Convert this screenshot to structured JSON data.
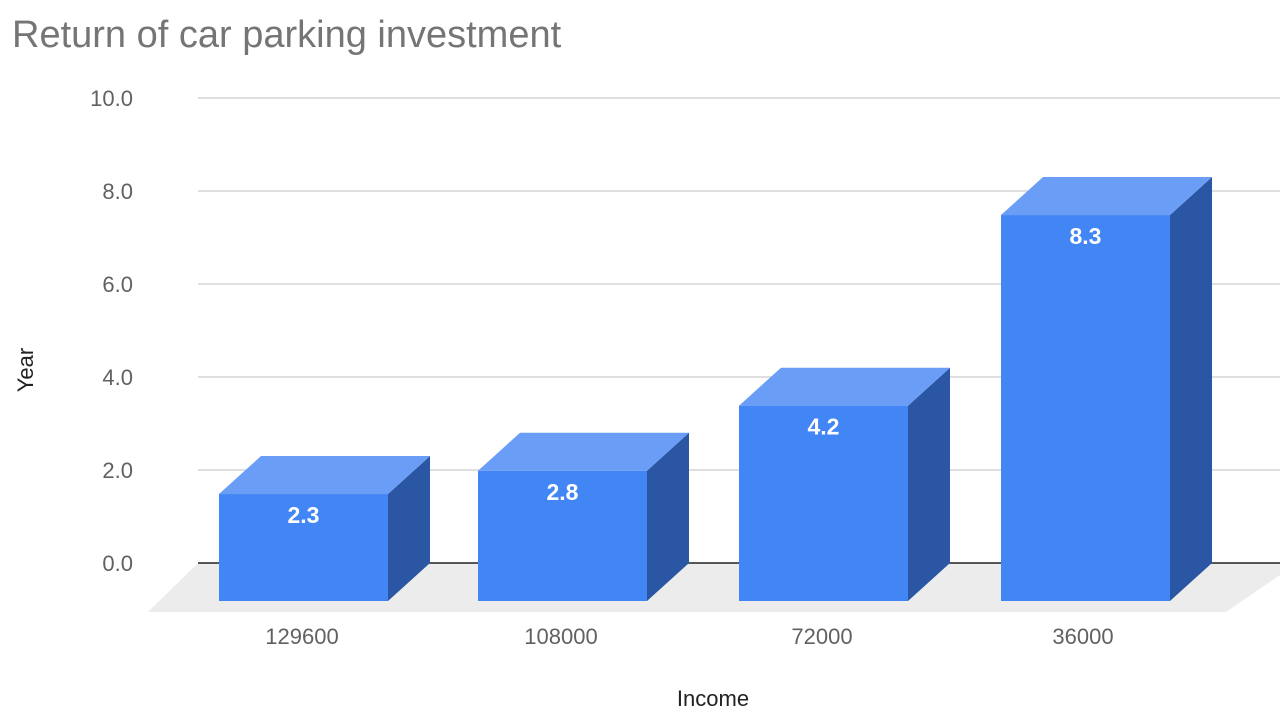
{
  "chart_data": {
    "type": "bar",
    "title": "Return of car parking investment",
    "xlabel": "Income",
    "ylabel": "Year",
    "categories": [
      "129600",
      "108000",
      "72000",
      "36000"
    ],
    "values": [
      2.3,
      2.8,
      4.2,
      8.3
    ],
    "value_labels": [
      "2.3",
      "2.8",
      "4.2",
      "8.3"
    ],
    "ylim": [
      0,
      10
    ],
    "yticks": [
      "0.0",
      "2.0",
      "4.0",
      "6.0",
      "8.0",
      "10.0"
    ],
    "grid": true,
    "legend": "none",
    "style": "3d",
    "colors": {
      "bar_front": "#4285f4",
      "bar_top": "#6a9ef6",
      "bar_side": "#2a56a3",
      "floor": "#ececec",
      "grid": "#cccccc",
      "baseline": "#222222"
    }
  }
}
